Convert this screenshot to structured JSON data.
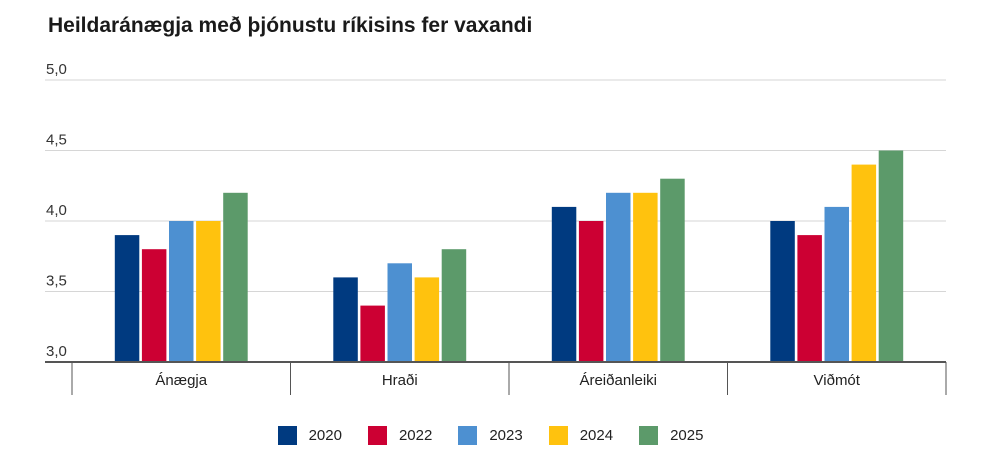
{
  "chart_data": {
    "type": "bar",
    "title": "Heildaránægja með þjónustu ríkisins fer vaxandi",
    "xlabel": "",
    "ylabel": "",
    "ylim": [
      3.0,
      5.0
    ],
    "yticks": [
      "3,0",
      "3,5",
      "4,0",
      "4,5",
      "5,0"
    ],
    "ytick_values": [
      3.0,
      3.5,
      4.0,
      4.5,
      5.0
    ],
    "categories": [
      "Ánægja",
      "Hraði",
      "Áreiðanleiki",
      "Viðmót"
    ],
    "series": [
      {
        "name": "2020",
        "color": "#003a80",
        "values": [
          3.9,
          3.6,
          4.1,
          4.0
        ]
      },
      {
        "name": "2022",
        "color": "#cc0033",
        "values": [
          3.8,
          3.4,
          4.0,
          3.9
        ]
      },
      {
        "name": "2023",
        "color": "#4d90d1",
        "values": [
          4.0,
          3.7,
          4.2,
          4.1
        ]
      },
      {
        "name": "2024",
        "color": "#ffc20e",
        "values": [
          4.0,
          3.6,
          4.2,
          4.4
        ]
      },
      {
        "name": "2025",
        "color": "#5c9a6a",
        "values": [
          4.2,
          3.8,
          4.3,
          4.5
        ]
      }
    ],
    "legend_position": "bottom-center",
    "grid": true
  }
}
